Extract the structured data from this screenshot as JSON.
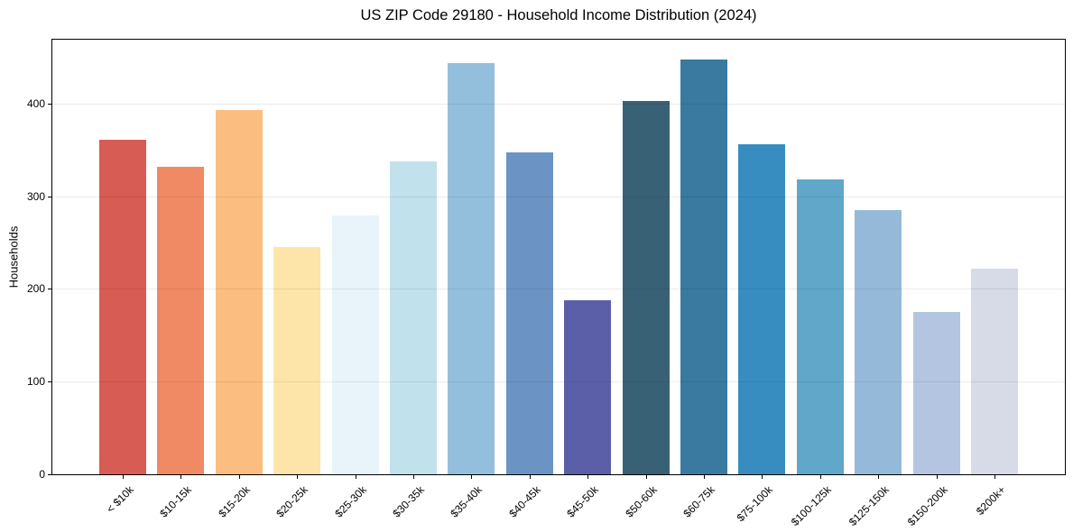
{
  "chart_data": {
    "type": "bar",
    "title": "US ZIP Code 29180 - Household Income Distribution (2024)",
    "xlabel": "",
    "ylabel": "Households",
    "categories": [
      "< $10k",
      "$10-15k",
      "$15-20k",
      "$20-25k",
      "$25-30k",
      "$30-35k",
      "$35-40k",
      "$40-45k",
      "$45-50k",
      "$50-60k",
      "$60-75k",
      "$75-100k",
      "$100-125k",
      "$125-150k",
      "$150-200k",
      "$200k+"
    ],
    "values": [
      361,
      332,
      393,
      245,
      279,
      338,
      444,
      347,
      188,
      403,
      448,
      356,
      318,
      285,
      175,
      222
    ],
    "bar_colors": [
      "#d75c53",
      "#f08a64",
      "#fbbd80",
      "#fde5a9",
      "#e8f4f9",
      "#c1e1ed",
      "#93bfdd",
      "#6b94c4",
      "#5b5fa7",
      "#396175",
      "#3a79a0",
      "#378dc0",
      "#60a7ca",
      "#95bad9",
      "#b3c5e0",
      "#d7dae7"
    ],
    "yticks": [
      0,
      100,
      200,
      300,
      400
    ],
    "ylim": [
      0,
      469
    ],
    "grid": "horizontal",
    "legend_position": "none",
    "background_color": "#ffffff",
    "spine_color": "#000000"
  }
}
